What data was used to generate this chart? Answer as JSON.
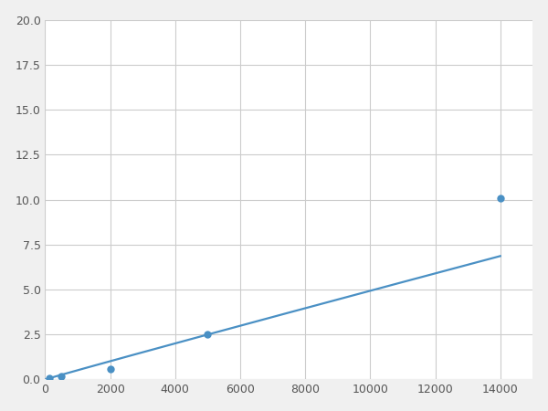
{
  "x_points": [
    125,
    500,
    2000,
    5000,
    14000
  ],
  "y_points": [
    0.1,
    0.2,
    0.6,
    2.5,
    10.1
  ],
  "line_color": "#4a90c4",
  "marker_color": "#4a90c4",
  "marker_size": 6,
  "linewidth": 1.6,
  "xlim": [
    0,
    15000
  ],
  "ylim": [
    0,
    20
  ],
  "xticks": [
    0,
    2000,
    4000,
    6000,
    8000,
    10000,
    12000,
    14000
  ],
  "yticks": [
    0.0,
    2.5,
    5.0,
    7.5,
    10.0,
    12.5,
    15.0,
    17.5,
    20.0
  ],
  "grid_color": "#cccccc",
  "background_color": "#ffffff",
  "figure_background": "#f0f0f0"
}
